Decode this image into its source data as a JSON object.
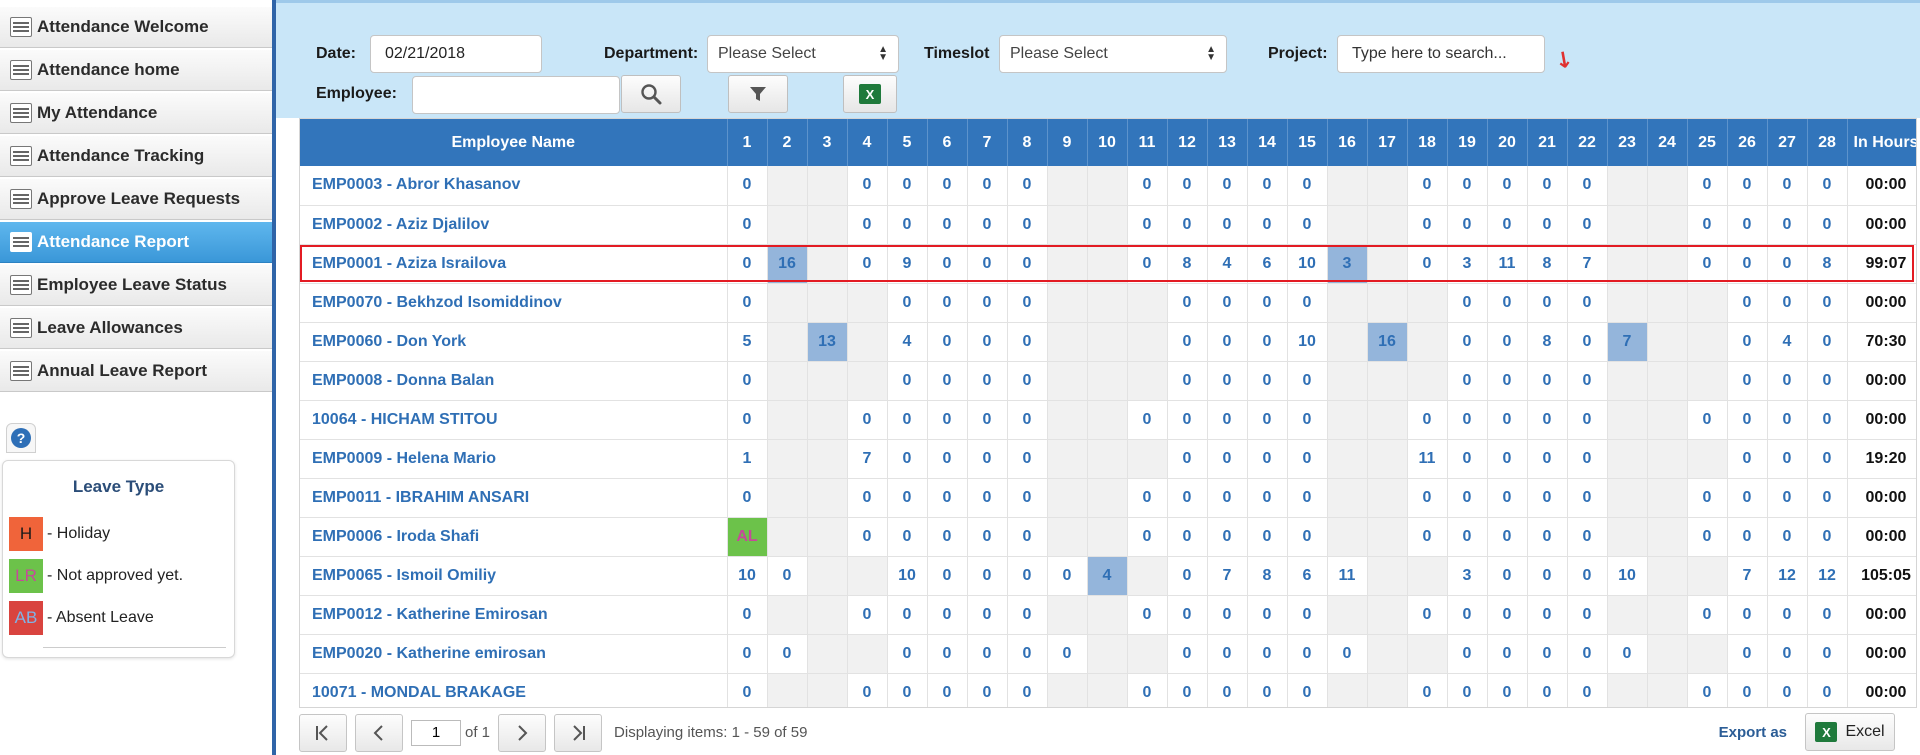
{
  "sidebar": {
    "items": [
      {
        "label": "Attendance Welcome",
        "icon": "table-icon",
        "active": false
      },
      {
        "label": "Attendance home",
        "icon": "table-icon",
        "active": false
      },
      {
        "label": "My Attendance",
        "icon": "people-icon",
        "active": false
      },
      {
        "label": "Attendance Tracking",
        "icon": "chart-icon",
        "active": false
      },
      {
        "label": "Approve Leave Requests",
        "icon": "checklist-icon",
        "active": false
      },
      {
        "label": "Attendance Report",
        "icon": "chart-icon",
        "active": true
      },
      {
        "label": "Employee Leave Status",
        "icon": "table-icon",
        "active": false
      },
      {
        "label": "Leave Allowances",
        "icon": "checklist-icon",
        "active": false
      },
      {
        "label": "Annual Leave Report",
        "icon": "table-icon",
        "active": false
      }
    ]
  },
  "help": {
    "glyph": "?"
  },
  "legend": {
    "title": "Leave Type",
    "items": [
      {
        "code": "H",
        "label": "- Holiday",
        "color": "#f0643a",
        "text_color": "#1a1a1a"
      },
      {
        "code": "LR",
        "label": "- Not approved yet.",
        "color": "#6cc24a",
        "text_color": "#c64a9a"
      },
      {
        "code": "AB",
        "label": "- Absent Leave",
        "color": "#d9443f",
        "text_color": "#7fb3e6"
      }
    ]
  },
  "filters": {
    "date_label": "Date:",
    "date_value": "02/21/2018",
    "department_label": "Department:",
    "department_value": "Please Select",
    "timeslot_label": "Timeslot",
    "timeslot_value": "Please Select",
    "project_label": "Project:",
    "project_placeholder": "Type here to search...",
    "employee_label": "Employee:",
    "employee_value": ""
  },
  "grid": {
    "header_name": "Employee Name",
    "days": [
      "1",
      "2",
      "3",
      "4",
      "5",
      "6",
      "7",
      "8",
      "9",
      "10",
      "11",
      "12",
      "13",
      "14",
      "15",
      "16",
      "17",
      "18",
      "19",
      "20",
      "21",
      "22",
      "23",
      "24",
      "25",
      "26",
      "27",
      "28"
    ],
    "header_hours": "In Hours",
    "rows": [
      {
        "name": "EMP0003 - Abror Khasanov",
        "cells": [
          "0",
          "",
          "",
          "0",
          "0",
          "0",
          "0",
          "0",
          "",
          "",
          "0",
          "0",
          "0",
          "0",
          "0",
          "",
          "",
          "0",
          "0",
          "0",
          "0",
          "0",
          "",
          "",
          "0",
          "0",
          "0",
          "0"
        ],
        "hours": "00:00"
      },
      {
        "name": "EMP0002 - Aziz Djalilov",
        "cells": [
          "0",
          "",
          "",
          "0",
          "0",
          "0",
          "0",
          "0",
          "",
          "",
          "0",
          "0",
          "0",
          "0",
          "0",
          "",
          "",
          "0",
          "0",
          "0",
          "0",
          "0",
          "",
          "",
          "0",
          "0",
          "0",
          "0"
        ],
        "hours": "00:00"
      },
      {
        "name": "EMP0001 - Aziza Israilova",
        "cells": [
          "0",
          "16",
          "",
          "0",
          "9",
          "0",
          "0",
          "0",
          "",
          "",
          "0",
          "8",
          "4",
          "6",
          "10",
          "3",
          "",
          "0",
          "3",
          "11",
          "8",
          "7",
          "",
          "",
          "0",
          "0",
          "0",
          "8"
        ],
        "hours": "99:07",
        "hl": [
          1,
          15
        ],
        "selected": true
      },
      {
        "name": "EMP0070 - Bekhzod Isomiddinov",
        "cells": [
          "0",
          "",
          "",
          "",
          "0",
          "0",
          "0",
          "0",
          "",
          "",
          "",
          "0",
          "0",
          "0",
          "0",
          "",
          "",
          "",
          "0",
          "0",
          "0",
          "0",
          "",
          "",
          "",
          "0",
          "0",
          "0"
        ],
        "hours": "00:00"
      },
      {
        "name": "EMP0060 - Don York",
        "cells": [
          "5",
          "",
          "13",
          "",
          "4",
          "0",
          "0",
          "0",
          "",
          "",
          "",
          "0",
          "0",
          "0",
          "10",
          "",
          "16",
          "",
          "0",
          "0",
          "8",
          "0",
          "7",
          "",
          "",
          "0",
          "4",
          "0"
        ],
        "hours": "70:30",
        "hl": [
          2,
          16,
          22
        ]
      },
      {
        "name": "EMP0008 - Donna Balan",
        "cells": [
          "0",
          "",
          "",
          "",
          "0",
          "0",
          "0",
          "0",
          "",
          "",
          "",
          "0",
          "0",
          "0",
          "0",
          "",
          "",
          "",
          "0",
          "0",
          "0",
          "0",
          "",
          "",
          "",
          "0",
          "0",
          "0"
        ],
        "hours": "00:00"
      },
      {
        "name": "10064 - HICHAM STITOU",
        "cells": [
          "0",
          "",
          "",
          "0",
          "0",
          "0",
          "0",
          "0",
          "",
          "",
          "0",
          "0",
          "0",
          "0",
          "0",
          "",
          "",
          "0",
          "0",
          "0",
          "0",
          "0",
          "",
          "",
          "0",
          "0",
          "0",
          "0"
        ],
        "hours": "00:00"
      },
      {
        "name": "EMP0009 - Helena Mario",
        "cells": [
          "1",
          "",
          "",
          "7",
          "0",
          "0",
          "0",
          "0",
          "",
          "",
          "",
          "0",
          "0",
          "0",
          "0",
          "",
          "",
          "11",
          "0",
          "0",
          "0",
          "0",
          "",
          "",
          "",
          "0",
          "0",
          "0"
        ],
        "hours": "19:20"
      },
      {
        "name": "EMP0011 - IBRAHIM ANSARI",
        "cells": [
          "0",
          "",
          "",
          "0",
          "0",
          "0",
          "0",
          "0",
          "",
          "",
          "0",
          "0",
          "0",
          "0",
          "0",
          "",
          "",
          "0",
          "0",
          "0",
          "0",
          "0",
          "",
          "",
          "0",
          "0",
          "0",
          "0"
        ],
        "hours": "00:00"
      },
      {
        "name": "EMP0006 - Iroda Shafi",
        "cells": [
          "AL",
          "",
          "",
          "0",
          "0",
          "0",
          "0",
          "0",
          "",
          "",
          "0",
          "0",
          "0",
          "0",
          "0",
          "",
          "",
          "0",
          "0",
          "0",
          "0",
          "0",
          "",
          "",
          "0",
          "0",
          "0",
          "0"
        ],
        "hours": "00:00",
        "al": [
          0
        ]
      },
      {
        "name": "EMP0065 - Ismoil Omiliy",
        "cells": [
          "10",
          "0",
          "",
          "",
          "10",
          "0",
          "0",
          "0",
          "0",
          "4",
          "",
          "0",
          "7",
          "8",
          "6",
          "11",
          "",
          "",
          "3",
          "0",
          "0",
          "0",
          "10",
          "",
          "",
          "7",
          "12",
          "12"
        ],
        "hours": "105:05",
        "hl": [
          9
        ]
      },
      {
        "name": "EMP0012 - Katherine Emirosan",
        "cells": [
          "0",
          "",
          "",
          "0",
          "0",
          "0",
          "0",
          "0",
          "",
          "",
          "0",
          "0",
          "0",
          "0",
          "0",
          "",
          "",
          "0",
          "0",
          "0",
          "0",
          "0",
          "",
          "",
          "0",
          "0",
          "0",
          "0"
        ],
        "hours": "00:00"
      },
      {
        "name": "EMP0020 - Katherine emirosan",
        "cells": [
          "0",
          "0",
          "",
          "",
          "0",
          "0",
          "0",
          "0",
          "0",
          "",
          "",
          "0",
          "0",
          "0",
          "0",
          "0",
          "",
          "",
          "0",
          "0",
          "0",
          "0",
          "0",
          "",
          "",
          "0",
          "0",
          "0"
        ],
        "hours": "00:00"
      },
      {
        "name": "10071 - MONDAL BRAKAGE",
        "cells": [
          "0",
          "",
          "",
          "0",
          "0",
          "0",
          "0",
          "0",
          "",
          "",
          "0",
          "0",
          "0",
          "0",
          "0",
          "",
          "",
          "0",
          "0",
          "0",
          "0",
          "0",
          "",
          "",
          "0",
          "0",
          "0",
          "0"
        ],
        "hours": "00:00"
      }
    ]
  },
  "pager": {
    "page_value": "1",
    "of_text": "of 1",
    "info": "Displaying items: 1 - 59 of 59",
    "export_label": "Export as",
    "excel_label": "Excel",
    "excel_glyph": "X"
  }
}
